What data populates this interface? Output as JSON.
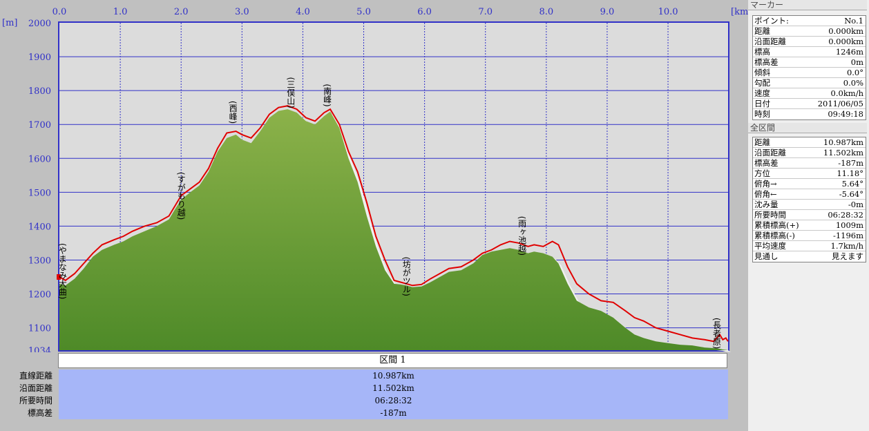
{
  "chart_data": {
    "type": "area",
    "xlabel": "[km]",
    "ylabel": "[m]",
    "xlim": [
      0,
      10.987
    ],
    "ylim": [
      1034,
      2000
    ],
    "x_ticks": [
      "0.0",
      "1.0",
      "2.0",
      "3.0",
      "4.0",
      "5.0",
      "6.0",
      "7.0",
      "8.0",
      "9.0",
      "10.0"
    ],
    "y_ticks": [
      "2000",
      "1900",
      "1800",
      "1700",
      "1600",
      "1500",
      "1400",
      "1300",
      "1200",
      "1100",
      "1034"
    ],
    "series": [
      {
        "color": "#e00000",
        "x": [
          0,
          0.1,
          0.25,
          0.4,
          0.55,
          0.7,
          0.9,
          1.05,
          1.2,
          1.4,
          1.6,
          1.8,
          1.9,
          2.0,
          2.15,
          2.3,
          2.45,
          2.6,
          2.75,
          2.9,
          3.0,
          3.15,
          3.3,
          3.45,
          3.6,
          3.75,
          3.9,
          4.05,
          4.2,
          4.35,
          4.45,
          4.6,
          4.75,
          4.9,
          5.05,
          5.2,
          5.35,
          5.5,
          5.6,
          5.7,
          5.8,
          5.95,
          6.1,
          6.25,
          6.4,
          6.6,
          6.8,
          6.95,
          7.1,
          7.25,
          7.4,
          7.55,
          7.7,
          7.8,
          7.95,
          8.1,
          8.2,
          8.35,
          8.5,
          8.7,
          8.9,
          9.1,
          9.3,
          9.45,
          9.6,
          9.8,
          10.0,
          10.2,
          10.4,
          10.6,
          10.75,
          10.85,
          10.9,
          10.95,
          10.987
        ],
        "y": [
          1250,
          1240,
          1260,
          1290,
          1320,
          1345,
          1360,
          1370,
          1385,
          1400,
          1410,
          1430,
          1460,
          1490,
          1510,
          1530,
          1570,
          1630,
          1675,
          1680,
          1670,
          1660,
          1690,
          1730,
          1750,
          1755,
          1745,
          1720,
          1710,
          1735,
          1745,
          1700,
          1620,
          1560,
          1470,
          1370,
          1300,
          1240,
          1235,
          1230,
          1225,
          1228,
          1245,
          1260,
          1275,
          1280,
          1300,
          1320,
          1330,
          1345,
          1355,
          1350,
          1340,
          1345,
          1340,
          1355,
          1345,
          1280,
          1230,
          1200,
          1180,
          1175,
          1150,
          1130,
          1120,
          1100,
          1090,
          1080,
          1070,
          1065,
          1060,
          1080,
          1065,
          1070,
          1060
        ]
      },
      {
        "color": "#6a9f32",
        "x": [
          0,
          0.1,
          0.25,
          0.4,
          0.55,
          0.7,
          0.9,
          1.05,
          1.2,
          1.4,
          1.6,
          1.8,
          1.9,
          2.0,
          2.15,
          2.3,
          2.45,
          2.6,
          2.75,
          2.9,
          3.0,
          3.15,
          3.3,
          3.45,
          3.6,
          3.75,
          3.9,
          4.05,
          4.2,
          4.35,
          4.45,
          4.6,
          4.75,
          4.9,
          5.05,
          5.2,
          5.35,
          5.5,
          5.6,
          5.7,
          5.8,
          5.95,
          6.1,
          6.25,
          6.4,
          6.6,
          6.8,
          6.95,
          7.1,
          7.25,
          7.4,
          7.55,
          7.7,
          7.8,
          7.95,
          8.1,
          8.2,
          8.35,
          8.5,
          8.7,
          8.9,
          9.1,
          9.3,
          9.45,
          9.6,
          9.8,
          10.0,
          10.2,
          10.4,
          10.6,
          10.75,
          10.85,
          10.9,
          10.95,
          10.987
        ],
        "y": [
          1230,
          1225,
          1245,
          1275,
          1310,
          1330,
          1345,
          1355,
          1370,
          1385,
          1400,
          1420,
          1450,
          1478,
          1500,
          1520,
          1560,
          1620,
          1660,
          1670,
          1655,
          1645,
          1680,
          1720,
          1740,
          1745,
          1735,
          1710,
          1700,
          1725,
          1738,
          1690,
          1600,
          1530,
          1430,
          1340,
          1270,
          1230,
          1228,
          1225,
          1220,
          1222,
          1235,
          1250,
          1265,
          1270,
          1290,
          1315,
          1325,
          1330,
          1335,
          1330,
          1320,
          1325,
          1320,
          1310,
          1290,
          1230,
          1180,
          1160,
          1150,
          1130,
          1100,
          1080,
          1070,
          1060,
          1055,
          1050,
          1048,
          1042,
          1040,
          1038,
          1036,
          1035,
          1034
        ]
      }
    ],
    "annotations": [
      {
        "x": 0.05,
        "y": 1350,
        "label": "(やまなみ大曲)"
      },
      {
        "x": 2.0,
        "y": 1560,
        "label": "(すがもり越)"
      },
      {
        "x": 2.85,
        "y": 1770,
        "label": "(西峰)"
      },
      {
        "x": 3.8,
        "y": 1840,
        "label": "(三俣山)"
      },
      {
        "x": 4.4,
        "y": 1820,
        "label": "(南峰)"
      },
      {
        "x": 5.7,
        "y": 1310,
        "label": "(坊がツル)"
      },
      {
        "x": 7.6,
        "y": 1430,
        "label": "(雨ヶ池越)"
      },
      {
        "x": 10.8,
        "y": 1130,
        "label": "(長者原)"
      }
    ],
    "grid": true
  },
  "segment": {
    "title": "区間 1",
    "rows": [
      {
        "label": "直線距離",
        "value": "10.987km"
      },
      {
        "label": "沿面距離",
        "value": "11.502km"
      },
      {
        "label": "所要時間",
        "value": "06:28:32"
      },
      {
        "label": "標高差",
        "value": "-187m"
      }
    ]
  },
  "marker": {
    "title": "マーカー",
    "rows": [
      {
        "key": "ポイント:",
        "value": "No.1"
      },
      {
        "key": "距離",
        "value": "0.000km"
      },
      {
        "key": "沿面距離",
        "value": "0.000km"
      },
      {
        "key": "標高",
        "value": "1246m"
      },
      {
        "key": "標高差",
        "value": "0m"
      },
      {
        "key": "傾斜",
        "value": "0.0°"
      },
      {
        "key": "勾配",
        "value": "0.0%"
      },
      {
        "key": "速度",
        "value": "0.0km/h"
      },
      {
        "key": "日付",
        "value": "2011/06/05"
      },
      {
        "key": "時刻",
        "value": "09:49:18"
      }
    ]
  },
  "total": {
    "title": "全区間",
    "rows": [
      {
        "key": "距離",
        "value": "10.987km"
      },
      {
        "key": "沿面距離",
        "value": "11.502km"
      },
      {
        "key": "標高差",
        "value": "-187m"
      },
      {
        "key": "方位",
        "value": "11.18°"
      },
      {
        "key": "俯角→",
        "value": "5.64°"
      },
      {
        "key": "俯角←",
        "value": "-5.64°"
      },
      {
        "key": "沈み量",
        "value": "-0m"
      },
      {
        "key": "所要時間",
        "value": "06:28:32"
      },
      {
        "key": "累積標高(+)",
        "value": "1009m"
      },
      {
        "key": "累積標高(-)",
        "value": "-1196m"
      },
      {
        "key": "平均速度",
        "value": "1.7km/h"
      },
      {
        "key": "見通し",
        "value": "見えます"
      }
    ]
  }
}
